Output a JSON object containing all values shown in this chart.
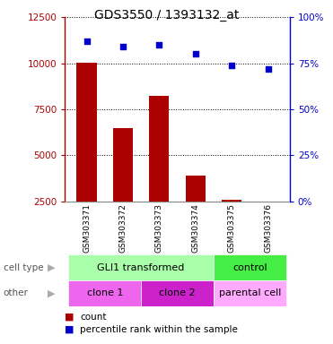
{
  "title": "GDS3550 / 1393132_at",
  "samples": [
    "GSM303371",
    "GSM303372",
    "GSM303373",
    "GSM303374",
    "GSM303375",
    "GSM303376"
  ],
  "counts": [
    10050,
    6450,
    8250,
    3900,
    2600,
    2480
  ],
  "percentile_ranks": [
    87,
    84,
    85,
    80,
    74,
    72
  ],
  "ylim_left": [
    2500,
    12500
  ],
  "ylim_right": [
    0,
    100
  ],
  "yticks_left": [
    2500,
    5000,
    7500,
    10000,
    12500
  ],
  "yticks_right": [
    0,
    25,
    50,
    75,
    100
  ],
  "bar_color": "#aa0000",
  "dot_color": "#0000cc",
  "bar_width": 0.55,
  "cell_type_labels": [
    {
      "label": "GLI1 transformed",
      "start": 0,
      "end": 4,
      "color": "#aaffaa"
    },
    {
      "label": "control",
      "start": 4,
      "end": 6,
      "color": "#44ee44"
    }
  ],
  "other_labels": [
    {
      "label": "clone 1",
      "start": 0,
      "end": 2,
      "color": "#ee66ee"
    },
    {
      "label": "clone 2",
      "start": 2,
      "end": 4,
      "color": "#cc22cc"
    },
    {
      "label": "parental cell",
      "start": 4,
      "end": 6,
      "color": "#ffaaff"
    }
  ],
  "row_label_cell_type": "cell type",
  "row_label_other": "other",
  "legend_count_label": "count",
  "legend_pct_label": "percentile rank within the sample",
  "bg_color": "#ffffff",
  "grid_color": "#000000",
  "label_gray": "#bbbbbb",
  "spine_gray": "#888888"
}
